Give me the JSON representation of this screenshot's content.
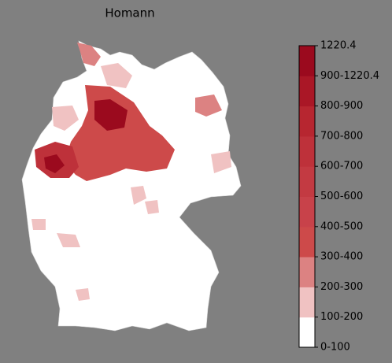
{
  "title": "Homann",
  "colorbar": {
    "labels": [
      "0-100",
      "100-200",
      "200-300",
      "300-400",
      "400-500",
      "500-600",
      "600-700",
      "700-800",
      "800-900",
      "900-1220.4",
      "1220.4"
    ],
    "colors": [
      "#ffffff",
      "#f0c2c2",
      "#dc8282",
      "#cd4a4a",
      "#c8424a",
      "#c33a42",
      "#be313a",
      "#b72630",
      "#aa1726",
      "#9b0a1e"
    ]
  }
}
